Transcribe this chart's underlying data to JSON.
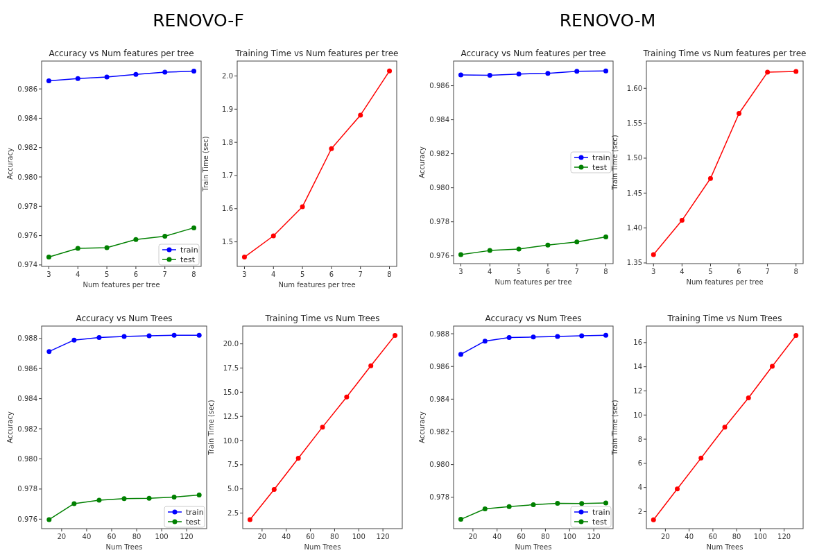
{
  "chart_data": [
    {
      "type": "line",
      "title": "Accuracy vs Num features per tree",
      "xlabel": "Num features per tree",
      "ylabel": "Accuracy",
      "annotations": [
        "RENOVO-F"
      ],
      "x": [
        3,
        4,
        5,
        6,
        7,
        8
      ],
      "xlim": [
        2.75,
        8.25
      ],
      "xticks": [
        3,
        4,
        5,
        6,
        7,
        8
      ],
      "ylim": [
        0.9739,
        0.9879
      ],
      "yticks": [
        0.974,
        0.976,
        0.978,
        {
          "value": 0.98,
          "label": "0.980"
        },
        0.982,
        0.984,
        0.986
      ],
      "marker": "circle",
      "legend": "bottom right",
      "series": [
        {
          "name": "train",
          "color": "#0000ff",
          "values": [
            0.98655,
            0.98671,
            0.98681,
            0.98699,
            0.98714,
            0.98721
          ]
        },
        {
          "name": "test",
          "color": "#008000",
          "values": [
            0.97454,
            0.97513,
            0.97518,
            0.97573,
            0.97596,
            0.97653
          ]
        }
      ]
    },
    {
      "type": "line",
      "title": "Training Time vs Num features per tree",
      "xlabel": "Num features per tree",
      "ylabel": "Train Time (sec)",
      "x": [
        3,
        4,
        5,
        6,
        7,
        8
      ],
      "xlim": [
        2.75,
        8.25
      ],
      "xticks": [
        3,
        4,
        5,
        6,
        7,
        8
      ],
      "ylim": [
        1.426,
        2.045
      ],
      "yticks": [
        1.5,
        1.6,
        1.7,
        1.8,
        1.9,
        {
          "value": 2,
          "label": "2.0"
        }
      ],
      "marker": "circle",
      "series": [
        {
          "color": "#ff0000",
          "values": [
            1.454,
            1.518,
            1.606,
            1.781,
            1.882,
            2.015
          ]
        }
      ]
    },
    {
      "type": "line",
      "title": "Accuracy vs Num features per tree",
      "xlabel": "Num features per tree",
      "ylabel": "Accuracy",
      "annotations": [
        "RENOVO-M"
      ],
      "x": [
        3,
        4,
        5,
        6,
        7,
        8
      ],
      "xlim": [
        2.75,
        8.25
      ],
      "xticks": [
        3,
        4,
        5,
        6,
        7,
        8
      ],
      "ylim": [
        0.97554,
        0.98745
      ],
      "yticks": [
        0.976,
        0.978,
        {
          "value": 0.98,
          "label": "0.980"
        },
        0.982,
        0.984,
        0.986
      ],
      "marker": "circle",
      "legend": "right",
      "series": [
        {
          "name": "train",
          "color": "#0000ff",
          "values": [
            0.98663,
            0.98661,
            0.98669,
            0.98673,
            0.98685,
            0.98687
          ]
        },
        {
          "name": "test",
          "color": "#008000",
          "values": [
            0.97607,
            0.97631,
            0.9764,
            0.97663,
            0.97681,
            0.97711
          ]
        }
      ]
    },
    {
      "type": "line",
      "title": "Training Time vs Num features per tree",
      "xlabel": "Num features per tree",
      "ylabel": "Train Time (sec)",
      "x": [
        3,
        4,
        5,
        6,
        7,
        8
      ],
      "xlim": [
        2.75,
        8.25
      ],
      "xticks": [
        3,
        4,
        5,
        6,
        7,
        8
      ],
      "ylim": [
        1.349,
        1.639
      ],
      "yticks": [
        1.35,
        {
          "value": 1.4,
          "label": "1.40"
        },
        1.45,
        {
          "value": 1.5,
          "label": "1.50"
        },
        1.55,
        {
          "value": 1.6,
          "label": "1.60"
        }
      ],
      "marker": "circle",
      "series": [
        {
          "color": "#ff0000",
          "values": [
            1.362,
            1.411,
            1.471,
            1.564,
            1.623,
            1.624
          ]
        }
      ]
    },
    {
      "type": "line",
      "title": "Accuracy vs Num Trees",
      "xlabel": "Num Trees",
      "ylabel": "Accuracy",
      "x": [
        10,
        30,
        50,
        70,
        90,
        110,
        130
      ],
      "xlim": [
        4,
        136
      ],
      "xticks": [
        20,
        40,
        60,
        80,
        100,
        120
      ],
      "ylim": [
        0.97537,
        0.98882
      ],
      "yticks": [
        0.976,
        0.978,
        {
          "value": 0.98,
          "label": "0.980"
        },
        0.982,
        0.984,
        0.986,
        0.988
      ],
      "marker": "circle",
      "legend": "bottom right",
      "series": [
        {
          "name": "train",
          "color": "#0000ff",
          "values": [
            0.98713,
            0.98789,
            0.98806,
            0.98813,
            0.98818,
            0.98821,
            0.98821
          ]
        },
        {
          "name": "test",
          "color": "#008000",
          "values": [
            0.97597,
            0.97703,
            0.97726,
            0.97736,
            0.97739,
            0.97747,
            0.9776
          ]
        }
      ]
    },
    {
      "type": "line",
      "title": "Training Time vs Num Trees",
      "xlabel": "Num Trees",
      "ylabel": "Train Time (sec)",
      "x": [
        10,
        30,
        50,
        70,
        90,
        110,
        130
      ],
      "xlim": [
        4,
        136
      ],
      "xticks": [
        20,
        40,
        60,
        80,
        100,
        120
      ],
      "ylim": [
        0.89,
        21.84
      ],
      "yticks": [
        2.5,
        {
          "value": 5,
          "label": "5.0"
        },
        7.5,
        {
          "value": 10,
          "label": "10.0"
        },
        12.5,
        {
          "value": 15,
          "label": "15.0"
        },
        17.5,
        {
          "value": 20,
          "label": "20.0"
        }
      ],
      "marker": "circle",
      "series": [
        {
          "color": "#ff0000",
          "values": [
            1.82,
            4.94,
            8.17,
            11.39,
            14.51,
            17.73,
            20.88
          ]
        }
      ]
    },
    {
      "type": "line",
      "title": "Accuracy vs Num Trees",
      "xlabel": "Num Trees",
      "ylabel": "Accuracy",
      "x": [
        10,
        30,
        50,
        70,
        90,
        110,
        130
      ],
      "xlim": [
        4,
        136
      ],
      "xticks": [
        20,
        40,
        60,
        80,
        100,
        120
      ],
      "ylim": [
        0.97608,
        0.98847
      ],
      "yticks": [
        0.978,
        {
          "value": 0.98,
          "label": "0.980"
        },
        0.982,
        0.984,
        0.986,
        0.988
      ],
      "marker": "circle",
      "legend": "bottom right",
      "series": [
        {
          "name": "train",
          "color": "#0000ff",
          "values": [
            0.98674,
            0.98755,
            0.98777,
            0.9878,
            0.98783,
            0.98788,
            0.98791
          ]
        },
        {
          "name": "test",
          "color": "#008000",
          "values": [
            0.97665,
            0.97729,
            0.97743,
            0.97754,
            0.97763,
            0.97762,
            0.97765
          ]
        }
      ]
    },
    {
      "type": "line",
      "title": "Training Time vs Num Trees",
      "xlabel": "Num Trees",
      "ylabel": "Train Time (sec)",
      "x": [
        10,
        30,
        50,
        70,
        90,
        110,
        130
      ],
      "xlim": [
        4,
        136
      ],
      "xticks": [
        20,
        40,
        60,
        80,
        100,
        120
      ],
      "ylim": [
        0.59,
        17.37
      ],
      "yticks": [
        2,
        4,
        6,
        8,
        10,
        12,
        14,
        16
      ],
      "marker": "circle",
      "series": [
        {
          "color": "#ff0000",
          "values": [
            1.32,
            3.88,
            6.43,
            8.99,
            11.42,
            14.04,
            16.59
          ]
        }
      ]
    }
  ]
}
